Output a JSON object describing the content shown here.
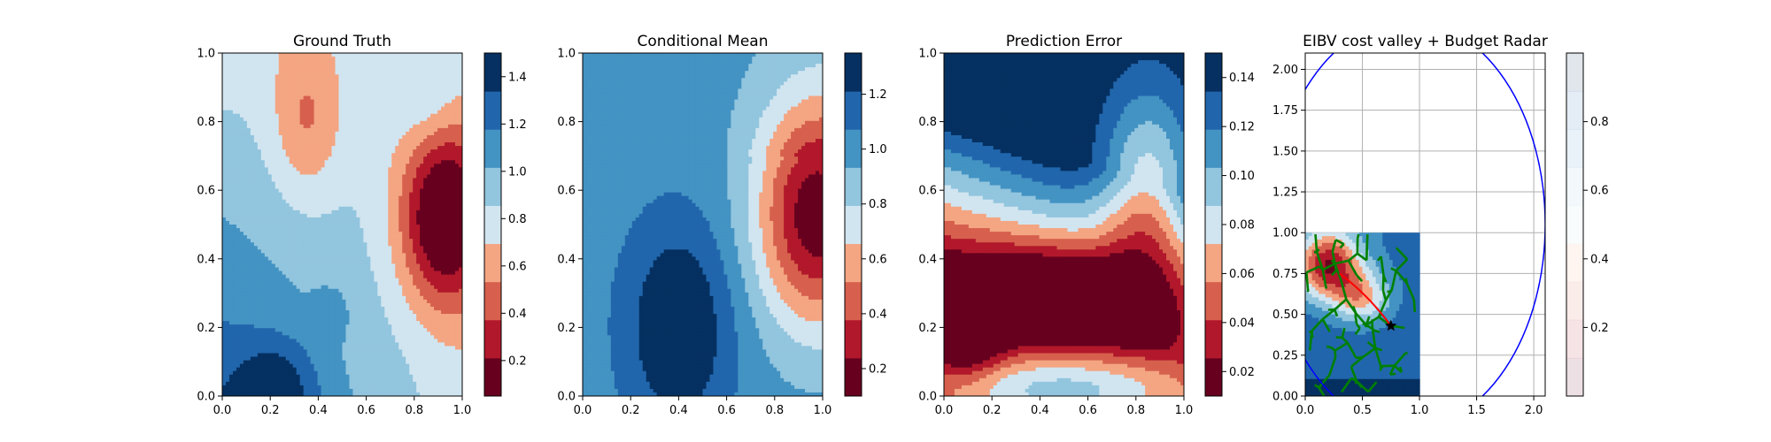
{
  "chart_data": [
    {
      "type": "heatmap",
      "title": "Ground Truth",
      "xlabel": "",
      "ylabel": "",
      "xlim": [
        0,
        1
      ],
      "ylim": [
        0,
        1
      ],
      "x_ticks": [
        0.0,
        0.2,
        0.4,
        0.6,
        0.8,
        1.0
      ],
      "y_ticks": [
        0.0,
        0.2,
        0.4,
        0.6,
        0.8,
        1.0
      ],
      "colormap": "RdBu",
      "contour_levels": 9,
      "colorbar": {
        "range": [
          0.05,
          1.5
        ],
        "ticks": [
          0.2,
          0.4,
          0.6,
          0.8,
          1.0,
          1.2,
          1.4
        ]
      },
      "peaks": [
        {
          "x": 0.92,
          "y": 0.52,
          "value": 0.1
        },
        {
          "x": 0.35,
          "y": 0.78,
          "value": 0.65
        },
        {
          "x": 0.62,
          "y": 0.42,
          "value": 0.8
        },
        {
          "x": 0.25,
          "y": 0.05,
          "value": 1.45
        },
        {
          "x": 0.45,
          "y": 0.24,
          "value": 1.35
        }
      ]
    },
    {
      "type": "heatmap",
      "title": "Conditional Mean",
      "xlabel": "",
      "ylabel": "",
      "xlim": [
        0,
        1
      ],
      "ylim": [
        0,
        1
      ],
      "x_ticks": [
        0.0,
        0.2,
        0.4,
        0.6,
        0.8,
        1.0
      ],
      "y_ticks": [
        0.0,
        0.2,
        0.4,
        0.6,
        0.8,
        1.0
      ],
      "colormap": "RdBu",
      "contour_levels": 9,
      "colorbar": {
        "range": [
          0.1,
          1.35
        ],
        "ticks": [
          0.2,
          0.4,
          0.6,
          0.8,
          1.0,
          1.2
        ]
      },
      "peaks": [
        {
          "x": 0.95,
          "y": 0.53,
          "value": 0.12
        },
        {
          "x": 0.4,
          "y": 0.22,
          "value": 1.35
        }
      ]
    },
    {
      "type": "heatmap",
      "title": "Prediction Error",
      "xlabel": "",
      "ylabel": "",
      "xlim": [
        0,
        1
      ],
      "ylim": [
        0,
        1
      ],
      "x_ticks": [
        0.0,
        0.2,
        0.4,
        0.6,
        0.8,
        1.0
      ],
      "y_ticks": [
        0.0,
        0.2,
        0.4,
        0.6,
        0.8,
        1.0
      ],
      "colormap": "RdBu",
      "contour_levels": 9,
      "colorbar": {
        "range": [
          0.01,
          0.15
        ],
        "ticks": [
          0.02,
          0.04,
          0.06,
          0.08,
          0.1,
          0.12,
          0.14
        ]
      },
      "low_error_points": [
        {
          "x": 0.08,
          "y": 0.16
        },
        {
          "x": 0.23,
          "y": 0.24
        },
        {
          "x": 0.45,
          "y": 0.24
        },
        {
          "x": 0.58,
          "y": 0.4
        },
        {
          "x": 0.82,
          "y": 0.5
        },
        {
          "x": 0.8,
          "y": 0.72
        }
      ]
    },
    {
      "type": "heatmap",
      "title": "EIBV cost valley + Budget Radar",
      "xlabel": "",
      "ylabel": "",
      "xlim": [
        0,
        2.1
      ],
      "ylim": [
        0,
        2.1
      ],
      "x_ticks": [
        0.0,
        0.5,
        1.0,
        1.5,
        2.0
      ],
      "y_ticks": [
        0.0,
        0.25,
        0.5,
        0.75,
        1.0,
        1.25,
        1.5,
        1.75,
        2.0
      ],
      "grid": true,
      "colormap": "RdBu (light)",
      "colorbar": {
        "range": [
          0,
          1
        ],
        "ticks": [
          0.2,
          0.4,
          0.6,
          0.8
        ]
      },
      "cost_field_extent": {
        "x": [
          0,
          1
        ],
        "y": [
          0,
          1
        ]
      },
      "current_location": {
        "x": 0.75,
        "y": 0.43
      },
      "budget_ellipse": {
        "cx": 0.9,
        "cy": 1.05,
        "rx": 1.2,
        "ry": 1.25
      },
      "rrt_tree_color": "#008000",
      "path_color": "#ff0000",
      "ellipse_color": "#0000ff"
    }
  ]
}
